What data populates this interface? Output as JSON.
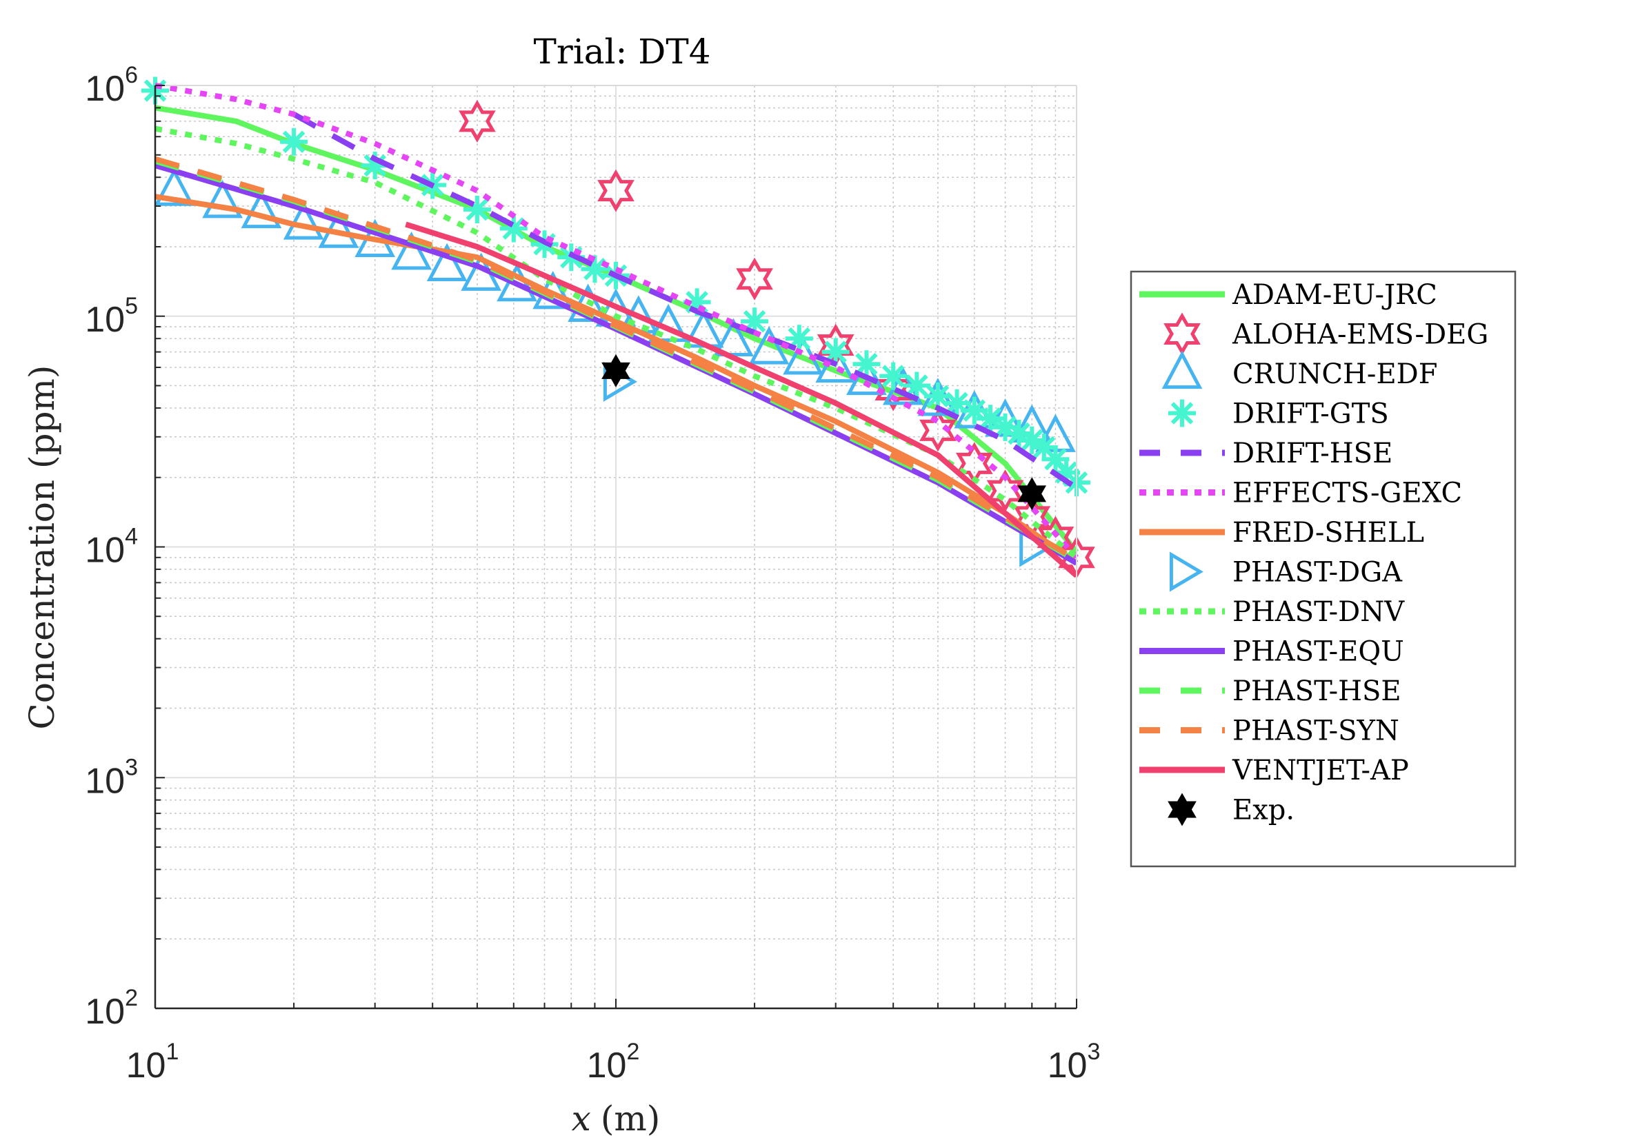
{
  "chart_data": {
    "type": "line",
    "title": "Trial:  DT4",
    "xlabel_var": "x",
    "xlabel_unit": "(m)",
    "ylabel": "Concentration (ppm)",
    "xscale": "log",
    "yscale": "log",
    "xlim": [
      10,
      1000
    ],
    "ylim": [
      100,
      1000000
    ],
    "grid": "major and minor",
    "legend_placement": "outside-right",
    "x_ticks": [
      {
        "base": "10",
        "exp": "1",
        "value": 10
      },
      {
        "base": "10",
        "exp": "2",
        "value": 100
      },
      {
        "base": "10",
        "exp": "3",
        "value": 1000
      }
    ],
    "y_ticks": [
      {
        "base": "10",
        "exp": "2",
        "value": 100
      },
      {
        "base": "10",
        "exp": "3",
        "value": 1000
      },
      {
        "base": "10",
        "exp": "4",
        "value": 10000
      },
      {
        "base": "10",
        "exp": "5",
        "value": 100000
      },
      {
        "base": "10",
        "exp": "6",
        "value": 1000000
      }
    ],
    "series": [
      {
        "name": "ADAM-EU-JRC",
        "color": "#5ef55e",
        "style": "solid",
        "marker": "none",
        "x": [
          10,
          15,
          20,
          30,
          50,
          70,
          100,
          150,
          200,
          300,
          500,
          700,
          1000
        ],
        "y": [
          800000,
          700000,
          560000,
          430000,
          290000,
          200000,
          150000,
          105000,
          80000,
          58000,
          40000,
          23000,
          9500
        ]
      },
      {
        "name": "ALOHA-EMS-DEG",
        "color": "#f0406e",
        "style": "none",
        "marker": "hexagram-open",
        "x": [
          50,
          100,
          200,
          300,
          400,
          500,
          600,
          700,
          800,
          900,
          1000
        ],
        "y": [
          700000,
          350000,
          145000,
          75000,
          48000,
          32000,
          23000,
          17500,
          13500,
          11000,
          9000
        ]
      },
      {
        "name": "CRUNCH-EDF",
        "color": "#46b4f0",
        "style": "none",
        "marker": "triangle-up-open",
        "x": [
          11,
          14,
          17,
          21,
          25,
          30,
          36,
          43,
          51,
          61,
          73,
          87,
          100,
          112,
          130,
          155,
          180,
          215,
          255,
          300,
          350,
          420,
          500,
          600,
          700,
          800,
          900
        ],
        "y": [
          350000,
          310000,
          280000,
          250000,
          230000,
          210000,
          185000,
          165000,
          150000,
          135000,
          125000,
          110000,
          105000,
          98000,
          90000,
          85000,
          78000,
          72000,
          65000,
          60000,
          53000,
          48000,
          43000,
          38000,
          35000,
          33000,
          30000
        ]
      },
      {
        "name": "DRIFT-GTS",
        "color": "#45f5d0",
        "style": "none",
        "marker": "asterisk",
        "x": [
          10,
          20,
          30,
          40,
          50,
          60,
          70,
          80,
          90,
          100,
          150,
          200,
          250,
          300,
          350,
          400,
          450,
          500,
          550,
          600,
          650,
          700,
          750,
          800,
          850,
          900,
          950,
          1000
        ],
        "y": [
          950000,
          570000,
          450000,
          370000,
          290000,
          240000,
          205000,
          180000,
          160000,
          150000,
          115000,
          95000,
          80000,
          70000,
          62000,
          55000,
          50000,
          45000,
          42000,
          39000,
          36000,
          33000,
          31000,
          29000,
          27000,
          24000,
          21000,
          19000
        ]
      },
      {
        "name": "DRIFT-HSE",
        "color": "#8a40f0",
        "style": "dashed",
        "marker": "none",
        "x": [
          20,
          30,
          50,
          70,
          100,
          150,
          200,
          300,
          500,
          700,
          1000
        ],
        "y": [
          750000,
          480000,
          300000,
          210000,
          150000,
          105000,
          85000,
          62000,
          40000,
          29000,
          18000
        ]
      },
      {
        "name": "EFFECTS-GEXC",
        "color": "#e645f5",
        "style": "dotted",
        "marker": "none",
        "x": [
          10,
          15,
          20,
          30,
          50,
          70,
          100,
          150,
          200,
          300,
          500,
          700,
          1000
        ],
        "y": [
          1000000,
          870000,
          750000,
          560000,
          350000,
          220000,
          160000,
          110000,
          85000,
          60000,
          35000,
          20000,
          9000
        ]
      },
      {
        "name": "FRED-SHELL",
        "color": "#f58245",
        "style": "solid",
        "marker": "none",
        "x": [
          10,
          15,
          20,
          30,
          40,
          50,
          70,
          100,
          150,
          200,
          300,
          500,
          700,
          1000
        ],
        "y": [
          330000,
          290000,
          250000,
          215000,
          195000,
          180000,
          130000,
          95000,
          66000,
          50000,
          35000,
          21000,
          14000,
          8500
        ]
      },
      {
        "name": "PHAST-DGA",
        "color": "#46b4f0",
        "style": "none",
        "marker": "triangle-right-open",
        "x": [
          100,
          800
        ],
        "y": [
          52000,
          10000
        ]
      },
      {
        "name": "PHAST-DNV",
        "color": "#5ef55e",
        "style": "dotted",
        "marker": "none",
        "x": [
          10,
          15,
          20,
          30,
          50,
          70,
          100,
          150,
          200,
          300,
          500,
          700,
          1000
        ],
        "y": [
          650000,
          560000,
          480000,
          380000,
          230000,
          145000,
          100000,
          72000,
          55000,
          40000,
          25000,
          16000,
          9000
        ]
      },
      {
        "name": "PHAST-EQU",
        "color": "#8a40f0",
        "style": "solid",
        "marker": "none",
        "x": [
          10,
          20,
          50,
          100,
          200,
          500,
          1000
        ],
        "y": [
          450000,
          300000,
          165000,
          88000,
          46000,
          19000,
          8500
        ]
      },
      {
        "name": "PHAST-HSE",
        "color": "#5ef55e",
        "style": "dashed",
        "marker": "none",
        "x": [
          10,
          20,
          50,
          100,
          200,
          500,
          1000
        ],
        "y": [
          470000,
          315000,
          172000,
          90000,
          47000,
          19500,
          8700
        ]
      },
      {
        "name": "PHAST-SYN",
        "color": "#f58245",
        "style": "dashed",
        "marker": "none",
        "x": [
          10,
          20,
          50,
          100,
          200,
          500,
          1000
        ],
        "y": [
          480000,
          320000,
          175000,
          91000,
          48000,
          20000,
          8800
        ]
      },
      {
        "name": "VENTJET-AP",
        "color": "#f0406e",
        "style": "solid",
        "marker": "none",
        "x": [
          35,
          50,
          70,
          100,
          150,
          200,
          300,
          500,
          700,
          1000
        ],
        "y": [
          250000,
          200000,
          150000,
          110000,
          78000,
          60000,
          42000,
          25000,
          14000,
          7500
        ]
      },
      {
        "name": "Exp.",
        "color": "#000000",
        "style": "none",
        "marker": "hexagram-filled",
        "x": [
          100,
          800
        ],
        "y": [
          58000,
          17000
        ]
      }
    ]
  }
}
